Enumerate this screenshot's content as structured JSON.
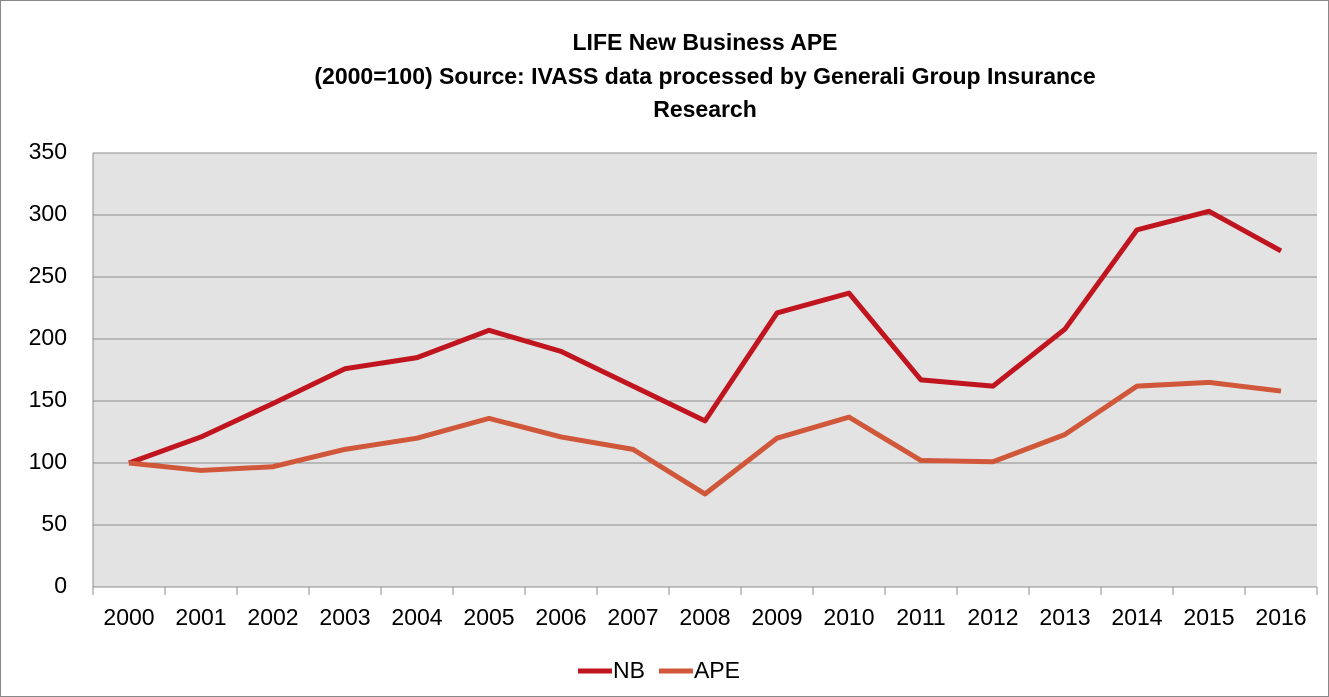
{
  "chart_data": {
    "type": "line",
    "title": [
      "LIFE New Business APE",
      "(2000=100) Source: IVASS data processed by Generali Group Insurance",
      "Research"
    ],
    "categories": [
      "2000",
      "2001",
      "2002",
      "2003",
      "2004",
      "2005",
      "2006",
      "2007",
      "2008",
      "2009",
      "2010",
      "2011",
      "2012",
      "2013",
      "2014",
      "2015",
      "2016"
    ],
    "series": [
      {
        "name": "NB",
        "color": "#c0141e",
        "values": [
          100,
          121,
          148,
          176,
          185,
          207,
          190,
          162,
          134,
          221,
          237,
          167,
          162,
          208,
          288,
          303,
          271
        ]
      },
      {
        "name": "APE",
        "color": "#d0573a",
        "values": [
          100,
          94,
          97,
          111,
          120,
          136,
          121,
          111,
          75,
          120,
          137,
          102,
          101,
          123,
          162,
          165,
          158
        ]
      }
    ],
    "ylim": [
      0,
      350
    ],
    "yticks": [
      0,
      50,
      100,
      150,
      200,
      250,
      300,
      350
    ],
    "grid": true,
    "legend": "bottom"
  }
}
